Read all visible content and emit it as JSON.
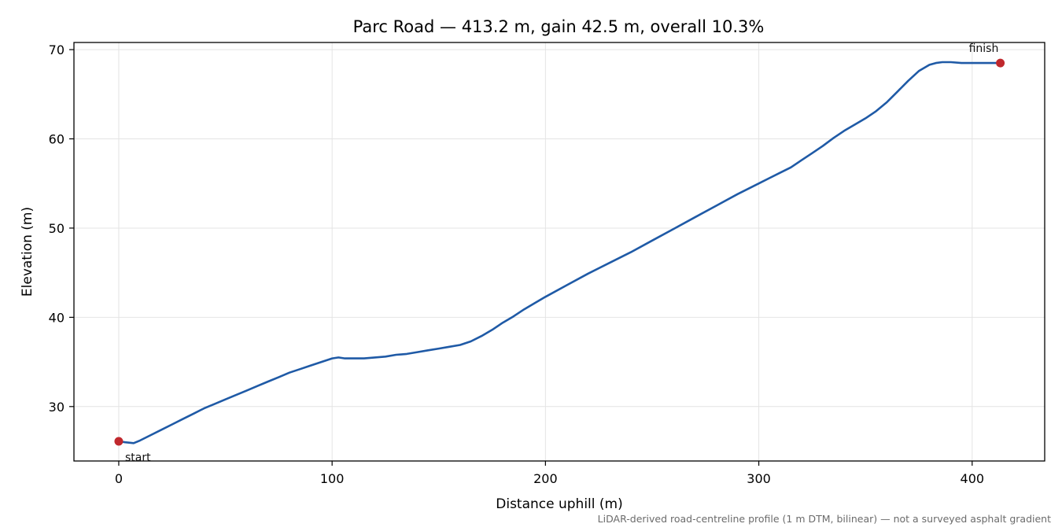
{
  "chart_data": {
    "type": "line",
    "title": "Parc Road — 413.2 m, gain 42.5 m, overall 10.3%",
    "xlabel": "Distance uphill (m)",
    "ylabel": "Elevation (m)",
    "xlim": [
      -21,
      434
    ],
    "ylim": [
      23.9,
      70.8
    ],
    "xticks": [
      0,
      100,
      200,
      300,
      400
    ],
    "yticks": [
      30,
      40,
      50,
      60,
      70
    ],
    "grid": true,
    "line_color": "#1f5aa6",
    "marker_color": "#c0282d",
    "series": [
      {
        "x": [
          0,
          3,
          7,
          10,
          15,
          20,
          25,
          30,
          35,
          40,
          45,
          50,
          55,
          60,
          65,
          70,
          75,
          80,
          85,
          90,
          95,
          100,
          103,
          106,
          110,
          115,
          120,
          125,
          130,
          135,
          140,
          145,
          150,
          155,
          160,
          165,
          170,
          175,
          180,
          185,
          190,
          195,
          200,
          210,
          220,
          230,
          240,
          250,
          260,
          270,
          280,
          290,
          300,
          305,
          310,
          315,
          320,
          325,
          330,
          335,
          340,
          345,
          350,
          355,
          360,
          365,
          370,
          375,
          380,
          383,
          386,
          390,
          395,
          400,
          405,
          410,
          413.2
        ],
        "y": [
          26.1,
          26.0,
          25.9,
          26.2,
          26.8,
          27.4,
          28.0,
          28.6,
          29.2,
          29.8,
          30.3,
          30.8,
          31.3,
          31.8,
          32.3,
          32.8,
          33.3,
          33.8,
          34.2,
          34.6,
          35.0,
          35.4,
          35.5,
          35.4,
          35.4,
          35.4,
          35.5,
          35.6,
          35.8,
          35.9,
          36.1,
          36.3,
          36.5,
          36.7,
          36.9,
          37.3,
          37.9,
          38.6,
          39.4,
          40.1,
          40.9,
          41.6,
          42.3,
          43.6,
          44.9,
          46.1,
          47.3,
          48.6,
          49.9,
          51.2,
          52.5,
          53.8,
          55.0,
          55.6,
          56.2,
          56.8,
          57.6,
          58.4,
          59.2,
          60.1,
          60.9,
          61.6,
          62.3,
          63.1,
          64.1,
          65.3,
          66.5,
          67.6,
          68.3,
          68.5,
          68.6,
          68.6,
          68.5,
          68.5,
          68.5,
          68.5,
          68.5
        ]
      }
    ],
    "annotations": [
      {
        "label": "start",
        "x": 0,
        "y": 26.1
      },
      {
        "label": "finish",
        "x": 413.2,
        "y": 68.5
      }
    ],
    "footnote": "LiDAR-derived road-centreline profile (1 m DTM, bilinear) — not a surveyed asphalt gradient"
  }
}
